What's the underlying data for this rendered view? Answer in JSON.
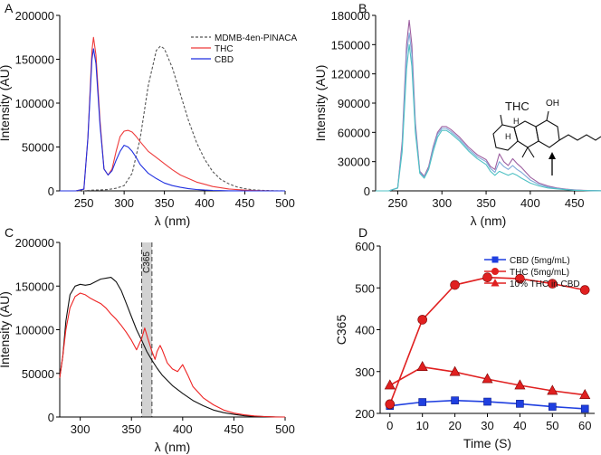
{
  "chart_data": [
    {
      "panel": "A",
      "type": "line",
      "xlabel": "λ (nm)",
      "ylabel": "Intensity (AU)",
      "xlim": [
        220,
        500
      ],
      "ylim": [
        0,
        200000
      ],
      "xticks": [
        250,
        300,
        350,
        400,
        450,
        500
      ],
      "yticks": [
        0,
        50000,
        100000,
        150000,
        200000
      ],
      "legend": "top-right",
      "series": [
        {
          "name": "MDMB-4en-PINACA",
          "color": "#555555",
          "dash": "dashed",
          "x": [
            220,
            240,
            250,
            260,
            270,
            280,
            290,
            300,
            310,
            320,
            330,
            340,
            345,
            350,
            360,
            370,
            380,
            390,
            400,
            410,
            420,
            430,
            440,
            450,
            460,
            470,
            480,
            490,
            500
          ],
          "y": [
            0,
            0,
            0,
            800,
            1000,
            1500,
            3000,
            6000,
            20000,
            60000,
            120000,
            160000,
            165000,
            162000,
            140000,
            110000,
            80000,
            55000,
            36000,
            22000,
            13000,
            8000,
            4500,
            2500,
            1200,
            600,
            300,
            100,
            0
          ]
        },
        {
          "name": "THC",
          "color": "#ee3b3b",
          "x": [
            220,
            240,
            250,
            255,
            260,
            262,
            265,
            270,
            275,
            280,
            285,
            290,
            295,
            300,
            305,
            310,
            315,
            320,
            330,
            340,
            350,
            360,
            370,
            380,
            390,
            400,
            410,
            420,
            430,
            440,
            450,
            460,
            470,
            480,
            490,
            500
          ],
          "y": [
            0,
            0,
            2000,
            60000,
            160000,
            175000,
            155000,
            80000,
            25000,
            18000,
            25000,
            45000,
            62000,
            68000,
            69000,
            67000,
            62000,
            56000,
            45000,
            38000,
            31000,
            24000,
            18000,
            14000,
            10000,
            7500,
            5000,
            3500,
            2200,
            1400,
            800,
            400,
            200,
            100,
            0,
            0
          ]
        },
        {
          "name": "CBD",
          "color": "#1f2fe0",
          "x": [
            220,
            240,
            250,
            255,
            260,
            262,
            265,
            270,
            275,
            280,
            285,
            290,
            295,
            300,
            305,
            310,
            315,
            320,
            330,
            340,
            350,
            360,
            370,
            380,
            390,
            400,
            410,
            420,
            430,
            440,
            450,
            460,
            470,
            480,
            490,
            500
          ],
          "y": [
            0,
            0,
            2000,
            60000,
            150000,
            162000,
            145000,
            75000,
            25000,
            18000,
            23000,
            35000,
            45000,
            52000,
            50000,
            45000,
            38000,
            30000,
            20000,
            14000,
            9000,
            6000,
            4000,
            2500,
            1500,
            900,
            500,
            300,
            150,
            80,
            40,
            0,
            0,
            0,
            0,
            0
          ]
        }
      ]
    },
    {
      "panel": "B",
      "type": "line",
      "xlabel": "λ (nm)",
      "ylabel": "Intensity (AU)",
      "xlim": [
        225,
        480
      ],
      "ylim": [
        0,
        180000
      ],
      "xticks": [
        250,
        300,
        350,
        400,
        450
      ],
      "yticks": [
        0,
        30000,
        60000,
        90000,
        120000,
        150000,
        180000
      ],
      "annotation": "THC",
      "molecule_labels": [
        "OH",
        "H",
        "H"
      ],
      "series": [
        {
          "color": "#9c5fa0",
          "x": [
            225,
            240,
            250,
            255,
            260,
            263,
            266,
            270,
            275,
            280,
            285,
            290,
            295,
            300,
            305,
            310,
            320,
            330,
            340,
            350,
            355,
            360,
            365,
            370,
            375,
            380,
            385,
            390,
            400,
            410,
            420,
            430,
            440,
            450,
            460,
            470,
            480
          ],
          "y": [
            0,
            0,
            3000,
            50000,
            150000,
            175000,
            150000,
            70000,
            20000,
            15000,
            25000,
            45000,
            60000,
            66000,
            66000,
            63000,
            55000,
            45000,
            37000,
            32000,
            25000,
            22000,
            38000,
            30000,
            26000,
            33000,
            28000,
            24000,
            14000,
            8000,
            5000,
            3000,
            1800,
            1000,
            600,
            300,
            100
          ]
        },
        {
          "color": "#7ea8d8",
          "x": [
            225,
            240,
            250,
            255,
            260,
            263,
            266,
            270,
            275,
            280,
            285,
            290,
            295,
            300,
            305,
            310,
            320,
            330,
            340,
            350,
            355,
            360,
            365,
            370,
            375,
            380,
            385,
            390,
            400,
            410,
            420,
            430,
            440,
            450,
            460,
            470,
            480
          ],
          "y": [
            0,
            0,
            3000,
            45000,
            140000,
            162000,
            140000,
            65000,
            19000,
            14000,
            23000,
            43000,
            58000,
            64000,
            64000,
            61000,
            53000,
            43000,
            35000,
            30000,
            23000,
            19000,
            30000,
            25000,
            22000,
            26000,
            22000,
            19000,
            11000,
            6500,
            4000,
            2500,
            1500,
            800,
            500,
            250,
            80
          ]
        },
        {
          "color": "#4fc1c4",
          "x": [
            225,
            240,
            250,
            255,
            260,
            263,
            266,
            270,
            275,
            280,
            285,
            290,
            295,
            300,
            305,
            310,
            320,
            330,
            340,
            350,
            355,
            360,
            365,
            370,
            375,
            380,
            385,
            390,
            400,
            410,
            420,
            430,
            440,
            450,
            460,
            470,
            480
          ],
          "y": [
            0,
            0,
            3000,
            40000,
            125000,
            150000,
            128000,
            60000,
            18000,
            13000,
            22000,
            40000,
            55000,
            62000,
            62000,
            59000,
            51000,
            41000,
            33000,
            27000,
            20000,
            16000,
            20000,
            18000,
            16000,
            18000,
            16000,
            13000,
            8000,
            5000,
            3000,
            2000,
            1200,
            600,
            400,
            200,
            60
          ]
        }
      ]
    },
    {
      "panel": "C",
      "type": "line",
      "xlabel": "λ (nm)",
      "ylabel": "Intensity (AU)",
      "xlim": [
        280,
        500
      ],
      "ylim": [
        0,
        200000
      ],
      "xticks": [
        300,
        350,
        400,
        450,
        500
      ],
      "yticks": [
        0,
        50000,
        100000,
        150000,
        200000
      ],
      "band_label": "C365",
      "band": [
        360,
        370
      ],
      "series": [
        {
          "color": "#111111",
          "x": [
            280,
            283,
            286,
            290,
            295,
            300,
            305,
            310,
            315,
            320,
            325,
            330,
            335,
            340,
            345,
            350,
            355,
            360,
            365,
            370,
            375,
            380,
            390,
            400,
            410,
            420,
            430,
            440,
            450,
            460,
            470,
            480,
            490,
            500
          ],
          "y": [
            45000,
            70000,
            110000,
            140000,
            150000,
            152000,
            151000,
            152000,
            155000,
            158000,
            159000,
            160000,
            155000,
            145000,
            130000,
            115000,
            100000,
            88000,
            75000,
            65000,
            56000,
            48000,
            36000,
            27000,
            19000,
            13000,
            8000,
            5000,
            3000,
            1500,
            800,
            400,
            100,
            0
          ]
        },
        {
          "color": "#ee2222",
          "x": [
            280,
            283,
            286,
            290,
            295,
            300,
            305,
            310,
            315,
            320,
            325,
            330,
            335,
            340,
            345,
            350,
            355,
            360,
            363,
            366,
            370,
            373,
            375,
            378,
            380,
            383,
            385,
            390,
            395,
            400,
            405,
            410,
            420,
            430,
            440,
            450,
            460,
            470,
            480,
            490,
            500
          ],
          "y": [
            45000,
            70000,
            100000,
            125000,
            138000,
            142000,
            140000,
            136000,
            133000,
            130000,
            125000,
            118000,
            112000,
            105000,
            97000,
            88000,
            77000,
            90000,
            102000,
            90000,
            75000,
            66000,
            75000,
            82000,
            77000,
            68000,
            62000,
            55000,
            52000,
            60000,
            48000,
            35000,
            22000,
            14000,
            8000,
            4500,
            2500,
            1200,
            500,
            100,
            0
          ]
        }
      ]
    },
    {
      "panel": "D",
      "type": "line",
      "xlabel": "Time (S)",
      "ylabel": "C365",
      "xlim": [
        -3,
        63
      ],
      "ylim": [
        200,
        600
      ],
      "xticks": [
        0,
        10,
        20,
        30,
        40,
        50,
        60
      ],
      "yticks": [
        200,
        300,
        400,
        500,
        600
      ],
      "legend": "top-right",
      "series": [
        {
          "name": "CBD (5mg/mL)",
          "color": "#1f3fe0",
          "marker": "square",
          "x": [
            0,
            10,
            20,
            30,
            40,
            50,
            60
          ],
          "y": [
            218,
            227,
            231,
            228,
            223,
            216,
            211
          ]
        },
        {
          "name": "THC (5mg/mL)",
          "color": "#e02020",
          "marker": "circle",
          "x": [
            0,
            10,
            20,
            30,
            40,
            50,
            60
          ],
          "y": [
            222,
            424,
            507,
            525,
            522,
            510,
            495
          ]
        },
        {
          "name": "10% THC in CBD",
          "color": "#e02020",
          "marker": "triangle",
          "x": [
            0,
            10,
            20,
            30,
            40,
            50,
            60
          ],
          "y": [
            267,
            311,
            299,
            282,
            267,
            254,
            244
          ]
        }
      ]
    }
  ]
}
